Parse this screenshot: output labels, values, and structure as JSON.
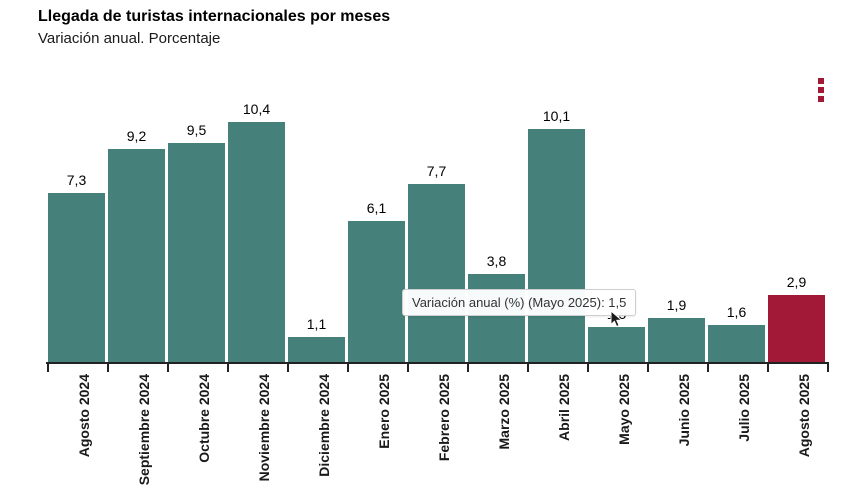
{
  "header": {
    "title": "Llegada de turistas internacionales por meses",
    "subtitle": "Variación anual. Porcentaje"
  },
  "colors": {
    "bar": "#45807A",
    "highlight": "#A21837",
    "menu_icon": "#A21837",
    "axis": "#222222"
  },
  "tooltip": {
    "text": "Variación anual (%) (Mayo 2025): 1,5"
  },
  "chart_data": {
    "type": "bar",
    "title": "Llegada de turistas internacionales por meses",
    "subtitle": "Variación anual. Porcentaje",
    "categories": [
      "Agosto 2024",
      "Septiembre 2024",
      "Octubre 2024",
      "Noviembre 2024",
      "Diciembre 2024",
      "Enero 2025",
      "Febrero 2025",
      "Marzo 2025",
      "Abril 2025",
      "Mayo 2025",
      "Junio 2025",
      "Julio 2025",
      "Agosto 2025"
    ],
    "values": [
      7.3,
      9.2,
      9.5,
      10.4,
      1.1,
      6.1,
      7.7,
      3.8,
      10.1,
      1.5,
      1.9,
      1.6,
      2.9
    ],
    "value_labels": [
      "7,3",
      "9,2",
      "9,5",
      "10,4",
      "1,1",
      "6,1",
      "7,7",
      "3,8",
      "10,1",
      "1,5",
      "1,9",
      "1,6",
      "2,9"
    ],
    "highlight_index": 12,
    "hovered_category": "Mayo 2025",
    "hovered_value_label": "1,5",
    "ylabel": "Variación anual (%)",
    "xlabel": "",
    "ylim": [
      0,
      11
    ],
    "grid": false,
    "legend": "none"
  }
}
